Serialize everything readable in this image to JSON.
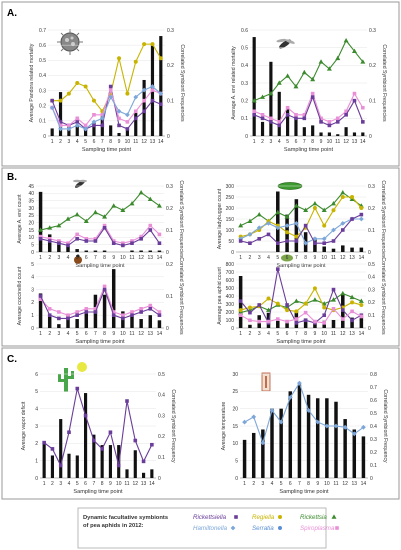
{
  "panel_labels": [
    "A.",
    "B.",
    "C."
  ],
  "legend": {
    "title": "Dynamic facultative symbionts of pea aphids in 2012:",
    "items": [
      {
        "label": "Rickettsiella",
        "color": "#6a3d9a",
        "marker": "square"
      },
      {
        "label": "Hamiltonella",
        "color": "#7da7d9",
        "marker": "diamond"
      },
      {
        "label": "Regiella",
        "color": "#c8b400",
        "marker": "circle"
      },
      {
        "label": "Serratia",
        "color": "#5b8fd6",
        "marker": "circle"
      },
      {
        "label": "Rickettsia",
        "color": "#3c8a2e",
        "marker": "triangle"
      },
      {
        "label": "Spiroplasma",
        "color": "#e98fd8",
        "marker": "square"
      }
    ]
  },
  "colors": {
    "bar": "#111111",
    "grid": "#e6e6e6"
  },
  "chart_data": [
    {
      "type": "bar",
      "xlabel": "Sampling time point",
      "ylabel": "Average Pandora related mortality",
      "y2label": "Correlated Symbiont Frequencies",
      "categories": [
        "1",
        "2",
        "3",
        "4",
        "5",
        "6",
        "7",
        "8",
        "9",
        "10",
        "11",
        "12",
        "13",
        "14"
      ],
      "ylim": [
        0,
        0.7
      ],
      "yticks": [
        0,
        0.1,
        0.2,
        0.3,
        0.4,
        0.5,
        0.6,
        0.7
      ],
      "y2lim": [
        0,
        0.3
      ],
      "y2ticks": [
        0,
        0.1,
        0.2,
        0.3
      ],
      "bars": [
        0.05,
        0.29,
        0.06,
        0.07,
        0.04,
        0.09,
        0.15,
        0.07,
        0.02,
        0.05,
        0.16,
        0.37,
        0.61,
        0.66
      ],
      "series": [
        {
          "color": "#c8b400",
          "marker": "circle",
          "values": [
            0.1,
            0.1,
            0.12,
            0.15,
            0.14,
            0.1,
            0.07,
            0.12,
            0.22,
            0.12,
            0.21,
            0.26,
            0.26,
            0.22
          ]
        },
        {
          "color": "#6a3d9a",
          "marker": "square",
          "values": [
            0.1,
            0.04,
            0.03,
            0.04,
            0.02,
            0.03,
            0.03,
            0.14,
            0.03,
            0.02,
            0.05,
            0.07,
            0.1,
            0.09
          ]
        },
        {
          "color": "#e98fd8",
          "marker": "square",
          "values": [
            0.08,
            0.03,
            0.03,
            0.05,
            0.03,
            0.06,
            0.06,
            0.13,
            0.05,
            0.04,
            0.07,
            0.1,
            0.13,
            0.12
          ]
        },
        {
          "color": "#7da7d9",
          "marker": "diamond",
          "values": [
            0.08,
            0.02,
            0.02,
            0.03,
            0.02,
            0.04,
            0.05,
            0.11,
            0.07,
            0.06,
            0.11,
            0.13,
            0.14,
            0.12
          ]
        }
      ]
    },
    {
      "type": "bar",
      "xlabel": "Sampling time point",
      "ylabel": "Average A. ervi related mortality",
      "y2label": "Correlated Symbiont Frequencies",
      "categories": [
        "1",
        "2",
        "3",
        "4",
        "5",
        "6",
        "7",
        "8",
        "9",
        "10",
        "11",
        "12",
        "13",
        "14"
      ],
      "ylim": [
        0,
        0.6
      ],
      "yticks": [
        0,
        0.1,
        0.2,
        0.3,
        0.4,
        0.5,
        0.6
      ],
      "y2lim": [
        0,
        0.3
      ],
      "y2ticks": [
        0,
        0.1,
        0.2,
        0.3
      ],
      "bars": [
        0.56,
        0.08,
        0.42,
        0.25,
        0.16,
        0.1,
        0.05,
        0.06,
        0.02,
        0.02,
        0.01,
        0.05,
        0.02,
        0.02
      ],
      "series": [
        {
          "color": "#3c8a2e",
          "marker": "triangle",
          "values": [
            0.1,
            0.11,
            0.12,
            0.15,
            0.17,
            0.14,
            0.18,
            0.16,
            0.21,
            0.19,
            0.22,
            0.27,
            0.24,
            0.21
          ]
        },
        {
          "color": "#e98fd8",
          "marker": "square",
          "values": [
            0.07,
            0.06,
            0.05,
            0.04,
            0.08,
            0.06,
            0.06,
            0.12,
            0.05,
            0.04,
            0.05,
            0.07,
            0.12,
            0.08
          ]
        },
        {
          "color": "#6a3d9a",
          "marker": "square",
          "values": [
            0.06,
            0.05,
            0.04,
            0.03,
            0.06,
            0.05,
            0.05,
            0.11,
            0.04,
            0.03,
            0.04,
            0.06,
            0.1,
            0.04
          ]
        }
      ]
    },
    {
      "type": "bar",
      "xlabel": "Sampling time point",
      "ylabel": "Average A. ervi count",
      "y2label": "Correlated Symbiont Frequencies",
      "categories": [
        "1",
        "2",
        "3",
        "4",
        "5",
        "6",
        "7",
        "8",
        "9",
        "10",
        "11",
        "12",
        "13",
        "14"
      ],
      "ylim": [
        0,
        45
      ],
      "yticks": [
        0,
        5,
        10,
        15,
        20,
        25,
        30,
        35,
        40,
        45
      ],
      "y2lim": [
        0,
        0.3
      ],
      "y2ticks": [
        0,
        0.1,
        0.2,
        0.3
      ],
      "bars": [
        41,
        12,
        8,
        4,
        2,
        1,
        1,
        1,
        0,
        0,
        1,
        1,
        1,
        1
      ],
      "series": [
        {
          "color": "#3c8a2e",
          "marker": "triangle",
          "values": [
            0.1,
            0.11,
            0.12,
            0.15,
            0.17,
            0.14,
            0.18,
            0.16,
            0.21,
            0.19,
            0.22,
            0.27,
            0.24,
            0.21
          ]
        },
        {
          "color": "#e98fd8",
          "marker": "square",
          "values": [
            0.07,
            0.06,
            0.05,
            0.04,
            0.08,
            0.06,
            0.06,
            0.12,
            0.05,
            0.04,
            0.05,
            0.07,
            0.12,
            0.08
          ]
        },
        {
          "color": "#6a3d9a",
          "marker": "square",
          "values": [
            0.06,
            0.05,
            0.04,
            0.03,
            0.06,
            0.05,
            0.05,
            0.11,
            0.04,
            0.03,
            0.04,
            0.06,
            0.1,
            0.04
          ]
        }
      ]
    },
    {
      "type": "bar",
      "xlabel": "Sampling time point",
      "ylabel": "Average ladybugger count",
      "y2label": "Correlated Symbiont Frequencies",
      "categories": [
        "1",
        "2",
        "3",
        "4",
        "5",
        "6",
        "7",
        "8",
        "9",
        "10",
        "11",
        "12",
        "13",
        "14"
      ],
      "ylim": [
        0,
        300
      ],
      "yticks": [
        0,
        50,
        100,
        150,
        200,
        250,
        300
      ],
      "y2lim": [
        0,
        0.3
      ],
      "y2ticks": [
        0,
        0.1,
        0.2,
        0.3
      ],
      "bars": [
        0,
        0,
        0,
        0,
        275,
        170,
        240,
        90,
        65,
        25,
        15,
        30,
        20,
        20
      ],
      "series": [
        {
          "color": "#3c8a2e",
          "marker": "triangle",
          "values": [
            0.12,
            0.14,
            0.17,
            0.14,
            0.18,
            0.16,
            0.21,
            0.19,
            0.22,
            0.19,
            0.22,
            0.27,
            0.24,
            0.21
          ]
        },
        {
          "color": "#c8b400",
          "marker": "circle",
          "values": [
            0.07,
            0.08,
            0.1,
            0.14,
            0.12,
            0.09,
            0.07,
            0.11,
            0.2,
            0.12,
            0.19,
            0.25,
            0.25,
            0.2
          ]
        },
        {
          "color": "#7da7d9",
          "marker": "diamond",
          "values": [
            0.06,
            0.08,
            0.11,
            0.13,
            0.11,
            0.12,
            0.13,
            0.04,
            0.06,
            0.06,
            0.1,
            0.13,
            0.15,
            0.15
          ]
        },
        {
          "color": "#6a3d9a",
          "marker": "square",
          "values": [
            0.05,
            0.04,
            0.06,
            0.08,
            0.04,
            0.05,
            0.05,
            0.12,
            0.04,
            0.04,
            0.05,
            0.1,
            0.15,
            0.17
          ]
        }
      ]
    },
    {
      "type": "bar",
      "xlabel": "Sampling time point",
      "ylabel": "Average coccinellid count",
      "y2label": "Correlated Symbiont Frequencies",
      "categories": [
        "1",
        "2",
        "3",
        "4",
        "5",
        "6",
        "7",
        "8",
        "9",
        "10",
        "11",
        "12",
        "13",
        "14"
      ],
      "ylim": [
        0,
        5
      ],
      "yticks": [
        0,
        1,
        2,
        3,
        4,
        5
      ],
      "y2lim": [
        0,
        0.2
      ],
      "y2ticks": [
        0,
        0.1,
        0.2
      ],
      "bars": [
        2.7,
        1.0,
        0.3,
        1.0,
        0.7,
        1.3,
        2.6,
        2.6,
        4.6,
        1.3,
        0.9,
        0.7,
        1.0,
        0.6
      ],
      "series": [
        {
          "color": "#e98fd8",
          "marker": "square",
          "values": [
            0.09,
            0.06,
            0.05,
            0.04,
            0.05,
            0.06,
            0.06,
            0.13,
            0.05,
            0.04,
            0.05,
            0.06,
            0.07,
            0.05
          ]
        },
        {
          "color": "#6a3d9a",
          "marker": "square",
          "values": [
            0.1,
            0.04,
            0.03,
            0.03,
            0.04,
            0.05,
            0.05,
            0.12,
            0.04,
            0.03,
            0.04,
            0.05,
            0.06,
            0.04
          ]
        }
      ]
    },
    {
      "type": "bar",
      "xlabel": "Sampling time point",
      "ylabel": "Average pea aphid count",
      "y2label": "Correlated Symbiont Frequencies",
      "categories": [
        "1",
        "2",
        "3",
        "4",
        "5",
        "6",
        "7",
        "8",
        "9",
        "10",
        "11",
        "12",
        "13",
        "14"
      ],
      "ylim": [
        0,
        800
      ],
      "yticks": [
        0,
        100,
        200,
        300,
        400,
        500,
        600,
        700,
        800
      ],
      "y2lim": [
        0,
        0.5
      ],
      "y2ticks": [
        0,
        0.1,
        0.2,
        0.3,
        0.4,
        0.5
      ],
      "bars": [
        650,
        40,
        160,
        190,
        90,
        70,
        210,
        120,
        80,
        90,
        100,
        420,
        130,
        140
      ],
      "series": [
        {
          "color": "#3c8a2e",
          "marker": "triangle",
          "values": [
            0.12,
            0.14,
            0.17,
            0.14,
            0.18,
            0.16,
            0.21,
            0.19,
            0.22,
            0.19,
            0.22,
            0.27,
            0.24,
            0.21
          ]
        },
        {
          "color": "#c8b400",
          "marker": "circle",
          "values": [
            0.14,
            0.16,
            0.17,
            0.23,
            0.19,
            0.14,
            0.13,
            0.19,
            0.31,
            0.16,
            0.14,
            0.16,
            0.2,
            0.18
          ]
        },
        {
          "color": "#6a3d9a",
          "marker": "square",
          "values": [
            0.21,
            0.12,
            0.18,
            0.04,
            0.46,
            0.18,
            0.04,
            0.06,
            0.04,
            0.1,
            0.3,
            0.14,
            0.06,
            0.1
          ]
        },
        {
          "color": "#e98fd8",
          "marker": "square",
          "values": [
            0.1,
            0.06,
            0.05,
            0.05,
            0.07,
            0.05,
            0.07,
            0.12,
            0.05,
            0.04,
            0.15,
            0.07,
            0.13,
            0.09
          ]
        }
      ]
    },
    {
      "type": "bar",
      "xlabel": "Sampling time point",
      "ylabel": "Average vapor deficit",
      "y2label": "Correlated Symbiont Frequency",
      "categories": [
        "1",
        "2",
        "3",
        "4",
        "5",
        "6",
        "7",
        "8",
        "9",
        "10",
        "11",
        "12",
        "13",
        "14"
      ],
      "ylim": [
        0,
        6
      ],
      "yticks": [
        0,
        1,
        2,
        3,
        4,
        5,
        6
      ],
      "y2lim": [
        0,
        0.5
      ],
      "y2ticks": [
        0,
        0.1,
        0.2,
        0.3,
        0.4,
        0.5
      ],
      "bars": [
        2.1,
        1.3,
        3.4,
        1.4,
        1.3,
        4.9,
        2.5,
        1.9,
        1.9,
        1.9,
        0.5,
        1.6,
        0.3,
        0.5
      ],
      "series": [
        {
          "color": "#6a3d9a",
          "marker": "square",
          "values": [
            0.17,
            0.14,
            0.06,
            0.22,
            0.43,
            0.3,
            0.18,
            0.14,
            0.22,
            0.06,
            0.37,
            0.18,
            0.08,
            0.16
          ]
        }
      ]
    },
    {
      "type": "bar",
      "xlabel": "Sampling time point",
      "ylabel": "Average temperature",
      "y2label": "Correlated Symbiont Frequency",
      "categories": [
        "1",
        "2",
        "3",
        "4",
        "5",
        "6",
        "7",
        "8",
        "9",
        "10",
        "11",
        "12",
        "13",
        "14"
      ],
      "ylim": [
        0,
        30
      ],
      "yticks": [
        0,
        5,
        10,
        15,
        20,
        25,
        30
      ],
      "y2lim": [
        0,
        0.8
      ],
      "y2ticks": [
        0,
        0.1,
        0.2,
        0.3,
        0.4,
        0.5,
        0.6,
        0.7,
        0.8
      ],
      "bars": [
        11,
        13,
        14,
        20,
        20,
        25,
        27,
        24,
        23,
        23,
        22,
        17,
        14,
        12
      ],
      "series": [
        {
          "color": "#7da7d9",
          "marker": "diamond",
          "values": [
            0.43,
            0.47,
            0.27,
            0.52,
            0.43,
            0.62,
            0.73,
            0.52,
            0.43,
            0.4,
            0.4,
            0.39,
            0.34,
            0.39
          ]
        }
      ]
    }
  ]
}
